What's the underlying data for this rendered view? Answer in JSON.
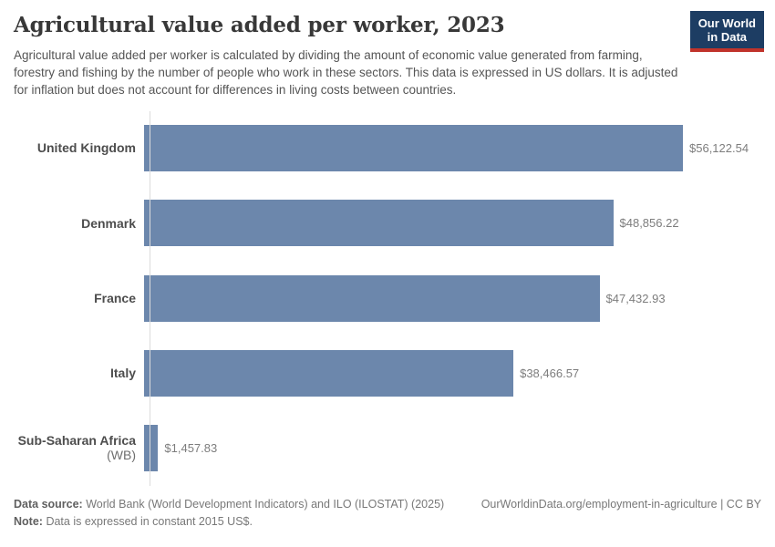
{
  "header": {
    "title": "Agricultural value added per worker, 2023",
    "subtitle": "Agricultural value added per worker is calculated by dividing the amount of economic value generated from farming, forestry and fishing by the number of people who work in these sectors. This data is expressed in US dollars. It is adjusted for inflation but does not account for differences in living costs between countries.",
    "logo": {
      "line1": "Our World",
      "line2": "in Data"
    }
  },
  "chart_data": {
    "type": "bar",
    "orientation": "horizontal",
    "title": "Agricultural value added per worker, 2023",
    "categories": [
      "United Kingdom",
      "Denmark",
      "France",
      "Italy",
      "Sub-Saharan Africa (WB)"
    ],
    "category_mains": [
      "United Kingdom",
      "Denmark",
      "France",
      "Italy",
      "Sub-Saharan Africa"
    ],
    "category_suffixes": [
      "",
      "",
      "",
      "",
      "(WB)"
    ],
    "values": [
      56122.54,
      48856.22,
      47432.93,
      38466.57,
      1457.83
    ],
    "value_labels": [
      "$56,122.54",
      "$48,856.22",
      "$47,432.93",
      "$38,466.57",
      "$1,457.83"
    ],
    "unit": "constant 2015 US$",
    "xlim": [
      0,
      56122.54
    ],
    "grid": false,
    "legend": "none",
    "bar_color": "#6c87ac"
  },
  "footer": {
    "data_source_label": "Data source:",
    "data_source_text": "World Bank (World Development Indicators) and ILO (ILOSTAT) (2025)",
    "attribution": "OurWorldinData.org/employment-in-agriculture | CC BY",
    "note_label": "Note:",
    "note_text": "Data is expressed in constant 2015 US$."
  },
  "colors": {
    "bar": "#6c87ac",
    "axis_line": "#dcdcdc",
    "title_text": "#383838",
    "subtitle_text": "#555555",
    "category_label": "#4d4d4d",
    "value_label": "#7d7d7d",
    "footer_text": "#787878",
    "logo_background": "#1d3d63",
    "logo_accent": "#c0332b"
  }
}
